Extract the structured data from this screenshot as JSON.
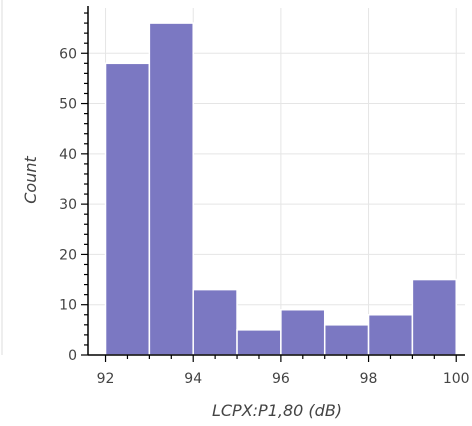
{
  "chart_data": {
    "type": "bar",
    "subtype": "histogram",
    "bins": [
      {
        "start": 92,
        "end": 93,
        "count": 58
      },
      {
        "start": 93,
        "end": 94,
        "count": 66
      },
      {
        "start": 94,
        "end": 95,
        "count": 13
      },
      {
        "start": 95,
        "end": 96,
        "count": 5
      },
      {
        "start": 96,
        "end": 97,
        "count": 9
      },
      {
        "start": 97,
        "end": 98,
        "count": 6
      },
      {
        "start": 98,
        "end": 99,
        "count": 8
      },
      {
        "start": 99,
        "end": 100,
        "count": 15
      }
    ],
    "xlabel": "LCPX:P1,80 (dB)",
    "ylabel": "Count",
    "xlim": [
      91.6,
      100.2
    ],
    "ylim": [
      0,
      69
    ],
    "xticks": [
      92,
      94,
      96,
      98,
      100
    ],
    "yticks": [
      0,
      10,
      20,
      30,
      40,
      50,
      60
    ],
    "grid": true,
    "colors": {
      "bar": "#7b78c2"
    }
  }
}
